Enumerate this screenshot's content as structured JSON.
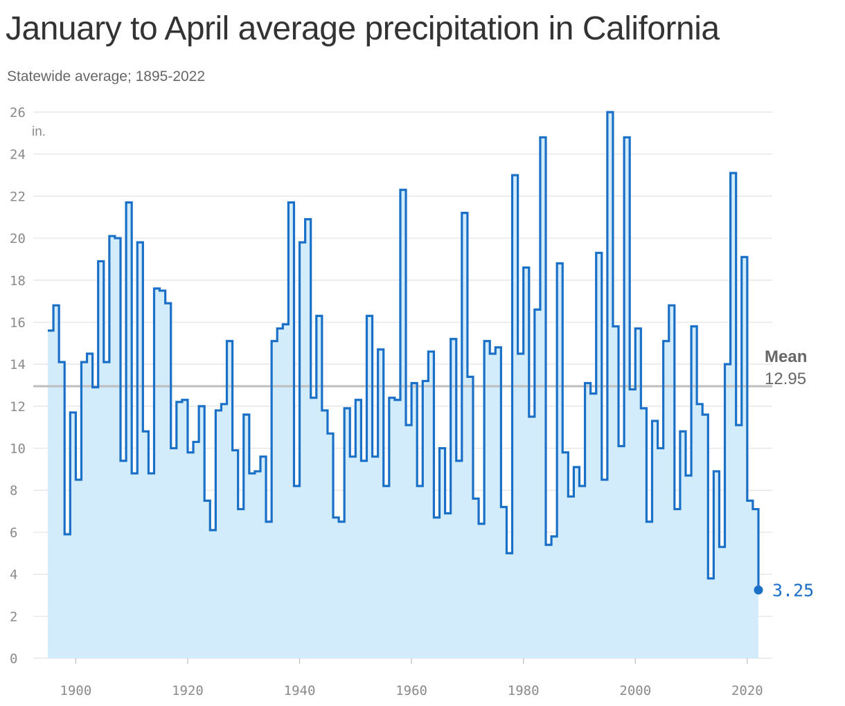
{
  "chart_data": {
    "type": "line",
    "step": true,
    "title": "January to April average precipitation in California",
    "subtitle": "Statewide average; 1895-2022",
    "y_unit_label": "in.",
    "ylim": [
      0,
      26
    ],
    "xlim": [
      1895,
      2022
    ],
    "y_ticks": [
      "0",
      "2",
      "4",
      "6",
      "8",
      "10",
      "12",
      "14",
      "16",
      "18",
      "20",
      "22",
      "24",
      "26"
    ],
    "x_ticks": [
      "1900",
      "1920",
      "1940",
      "1960",
      "1980",
      "2000",
      "2020"
    ],
    "grid": true,
    "colors": {
      "line": "#1a6fc7",
      "fill": "#d3ecfb",
      "mean": "#bdbdbd",
      "grid": "#e2e2e2"
    },
    "mean": {
      "label": "Mean",
      "value": 12.95,
      "value_text": "12.95"
    },
    "end_label": "3.25",
    "series": [
      {
        "x": [
          1895,
          1896,
          1897,
          1898,
          1899,
          1900,
          1901,
          1902,
          1903,
          1904,
          1905,
          1906,
          1907,
          1908,
          1909,
          1910,
          1911,
          1912,
          1913,
          1914,
          1915,
          1916,
          1917,
          1918,
          1919,
          1920,
          1921,
          1922,
          1923,
          1924,
          1925,
          1926,
          1927,
          1928,
          1929,
          1930,
          1931,
          1932,
          1933,
          1934,
          1935,
          1936,
          1937,
          1938,
          1939,
          1940,
          1941,
          1942,
          1943,
          1944,
          1945,
          1946,
          1947,
          1948,
          1949,
          1950,
          1951,
          1952,
          1953,
          1954,
          1955,
          1956,
          1957,
          1958,
          1959,
          1960,
          1961,
          1962,
          1963,
          1964,
          1965,
          1966,
          1967,
          1968,
          1969,
          1970,
          1971,
          1972,
          1973,
          1974,
          1975,
          1976,
          1977,
          1978,
          1979,
          1980,
          1981,
          1982,
          1983,
          1984,
          1985,
          1986,
          1987,
          1988,
          1989,
          1990,
          1991,
          1992,
          1993,
          1994,
          1995,
          1996,
          1997,
          1998,
          1999,
          2000,
          2001,
          2002,
          2003,
          2004,
          2005,
          2006,
          2007,
          2008,
          2009,
          2010,
          2011,
          2012,
          2013,
          2014,
          2015,
          2016,
          2017,
          2018,
          2019,
          2020,
          2021,
          2022
        ],
        "values": [
          15.6,
          16.8,
          14.1,
          5.9,
          11.7,
          8.5,
          14.1,
          14.5,
          12.9,
          18.9,
          14.1,
          20.1,
          20.0,
          9.4,
          21.7,
          8.8,
          19.8,
          10.8,
          8.8,
          17.6,
          17.5,
          16.9,
          10.0,
          12.2,
          12.3,
          9.8,
          10.3,
          12.0,
          7.5,
          6.1,
          11.8,
          12.1,
          15.1,
          9.9,
          7.1,
          11.6,
          8.8,
          8.9,
          9.6,
          6.5,
          15.1,
          15.7,
          15.9,
          21.7,
          8.2,
          19.8,
          20.9,
          12.4,
          16.3,
          11.8,
          10.7,
          6.7,
          6.5,
          11.9,
          9.6,
          12.3,
          9.4,
          16.3,
          9.6,
          14.7,
          8.2,
          12.4,
          12.3,
          22.3,
          11.1,
          13.1,
          8.2,
          13.2,
          14.6,
          6.7,
          10.0,
          6.9,
          15.2,
          9.4,
          21.2,
          13.4,
          7.6,
          6.4,
          15.1,
          14.5,
          14.8,
          7.2,
          5.0,
          23.0,
          14.5,
          18.6,
          11.5,
          16.6,
          24.8,
          5.4,
          5.8,
          18.8,
          9.8,
          7.7,
          9.1,
          8.2,
          13.1,
          12.6,
          19.3,
          8.5,
          26.0,
          15.8,
          10.1,
          24.8,
          12.8,
          15.7,
          11.9,
          6.5,
          11.3,
          10.0,
          15.1,
          16.8,
          7.1,
          10.8,
          8.7,
          15.8,
          12.1,
          11.6,
          3.8,
          8.9,
          5.3,
          14.0,
          23.1,
          11.1,
          19.1,
          7.5,
          7.1,
          3.25
        ]
      }
    ]
  }
}
